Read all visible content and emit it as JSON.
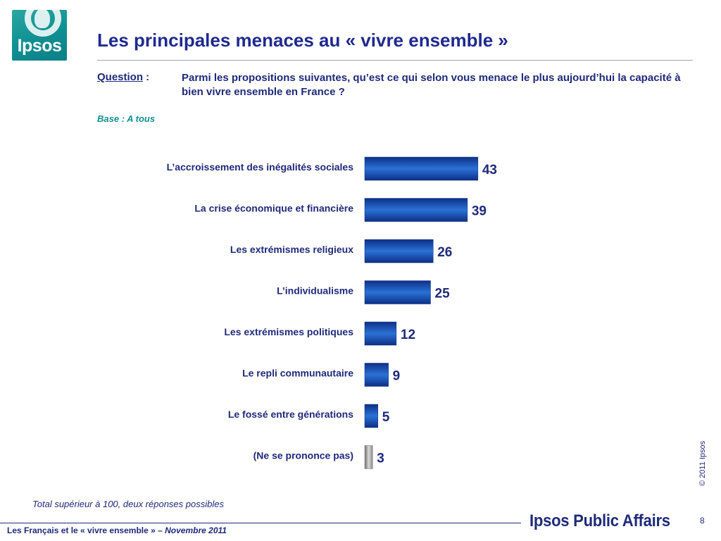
{
  "header": {
    "logo_text": "Ipsos",
    "title": "Les principales menaces au « vivre ensemble »"
  },
  "question": {
    "label": "Question",
    "label_suffix": " :",
    "text": "Parmi les propositions suivantes, qu’est ce qui selon vous menace le plus aujourd’hui la capacité à bien vivre ensemble en France ?",
    "base": "Base : A tous"
  },
  "chart_data": {
    "type": "bar",
    "orientation": "horizontal",
    "categories": [
      "L’accroissement des inégalités sociales",
      "La crise économique et financière",
      "Les extrémismes religieux",
      "L’individualisme",
      "Les extrémismes politiques",
      "Le repli communautaire",
      "Le fossé entre générations",
      "(Ne se prononce pas)"
    ],
    "values": [
      43,
      39,
      26,
      25,
      12,
      9,
      5,
      3
    ],
    "bar_colors": [
      "#1d5fc0",
      "#1d5fc0",
      "#1d5fc0",
      "#1d5fc0",
      "#1d5fc0",
      "#1d5fc0",
      "#1d5fc0",
      "#9a9a9a"
    ],
    "data_labels": true,
    "grid": false,
    "legend": "none"
  },
  "notes": {
    "footnote": "Total supérieur à 100, deux réponses possibles",
    "copyright": "© 2011 Ipsos"
  },
  "footer": {
    "left_text": "Les Français et le « vivre ensemble » – ",
    "left_date": "Novembre 2011",
    "brand": "Ipsos Public Affairs",
    "page_number": "8"
  },
  "colors": {
    "title": "#1f2a8f",
    "text": "#1f2a7a",
    "accent": "#0f8f93",
    "bar": "#1d5fc0",
    "bar_dark": "#0d2f86",
    "nsp_bar": "#9a9a9a"
  }
}
